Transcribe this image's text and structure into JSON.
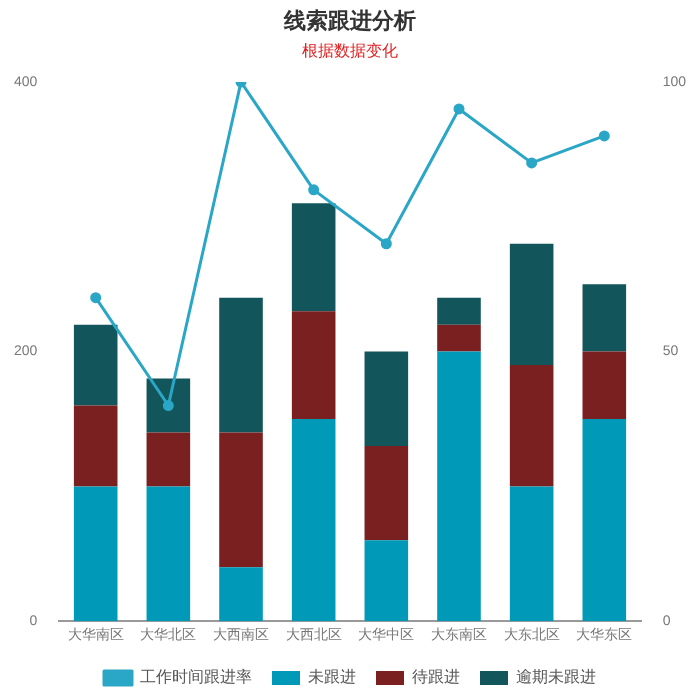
{
  "chart_data": {
    "type": "bar",
    "title": "线索跟进分析",
    "subtitle": "根据数据变化",
    "stacked": true,
    "categories": [
      "大华南区",
      "大华北区",
      "大西南区",
      "大西北区",
      "大华中区",
      "大东南区",
      "大东北区",
      "大华东区"
    ],
    "series": [
      {
        "name": "未跟进",
        "color": "#0099b8",
        "values": [
          100,
          100,
          40,
          150,
          60,
          200,
          100,
          150
        ]
      },
      {
        "name": "待跟进",
        "color": "#7a2020",
        "values": [
          60,
          40,
          100,
          80,
          70,
          20,
          90,
          50
        ]
      },
      {
        "name": "逾期未跟进",
        "color": "#12565b",
        "values": [
          60,
          40,
          100,
          80,
          70,
          20,
          90,
          50
        ]
      },
      {
        "name": "工作时间跟进率",
        "type": "line",
        "axis": "y2",
        "color": "#2aa6c6",
        "marker": "circle",
        "values": [
          60,
          40,
          100,
          80,
          70,
          95,
          85,
          90
        ]
      }
    ],
    "ylim": [
      0,
      400
    ],
    "yticks": [
      0,
      200,
      400
    ],
    "y2lim": [
      0,
      100
    ],
    "y2ticks": [
      0,
      50,
      100
    ],
    "grid": false,
    "legend": "bottom"
  }
}
